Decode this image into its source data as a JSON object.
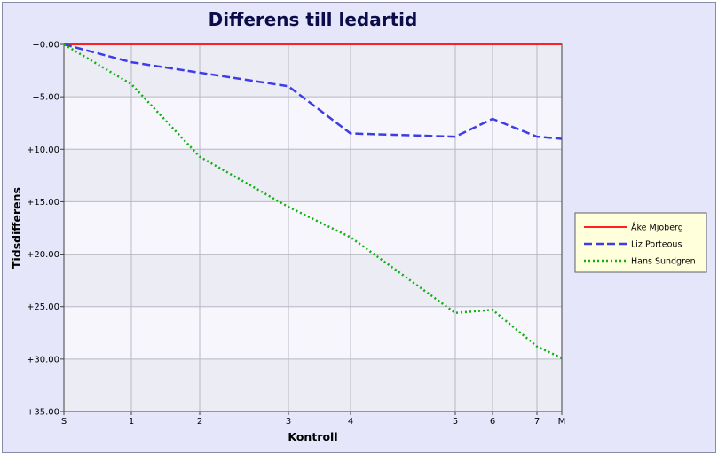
{
  "chart_data": {
    "type": "line",
    "title": "Differens till ledartid",
    "xlabel": "Kontroll",
    "ylabel": "Tidsdifferens",
    "x": [
      0,
      1,
      2,
      3,
      4,
      5,
      6,
      7,
      8
    ],
    "x_tick_labels": [
      "S",
      "1",
      "2",
      "3",
      "4",
      "5",
      "6",
      "7",
      "M"
    ],
    "y_tick_labels": [
      "+0.00",
      "+5.00",
      "+10.00",
      "+15.00",
      "+20.00",
      "+25.00",
      "+30.00",
      "+35.00"
    ],
    "ylim": [
      0,
      35
    ],
    "y_inverted": true,
    "grid": true,
    "legend_position": "right",
    "series": [
      {
        "name": "Åke Mjöberg",
        "color": "#ff2020",
        "dash": "solid",
        "values": [
          0,
          0,
          0,
          0,
          0,
          0,
          0,
          0,
          0
        ]
      },
      {
        "name": "Liz Porteous",
        "color": "#3c3ce8",
        "dash": "dashed",
        "values": [
          0,
          1.7,
          2.7,
          4.0,
          8.5,
          8.8,
          7.1,
          8.8,
          9.0
        ]
      },
      {
        "name": "Hans Sundgren",
        "color": "#10b010",
        "dash": "dotted",
        "values": [
          0,
          3.8,
          10.7,
          15.5,
          18.4,
          25.6,
          25.3,
          28.8,
          29.9
        ]
      }
    ]
  }
}
